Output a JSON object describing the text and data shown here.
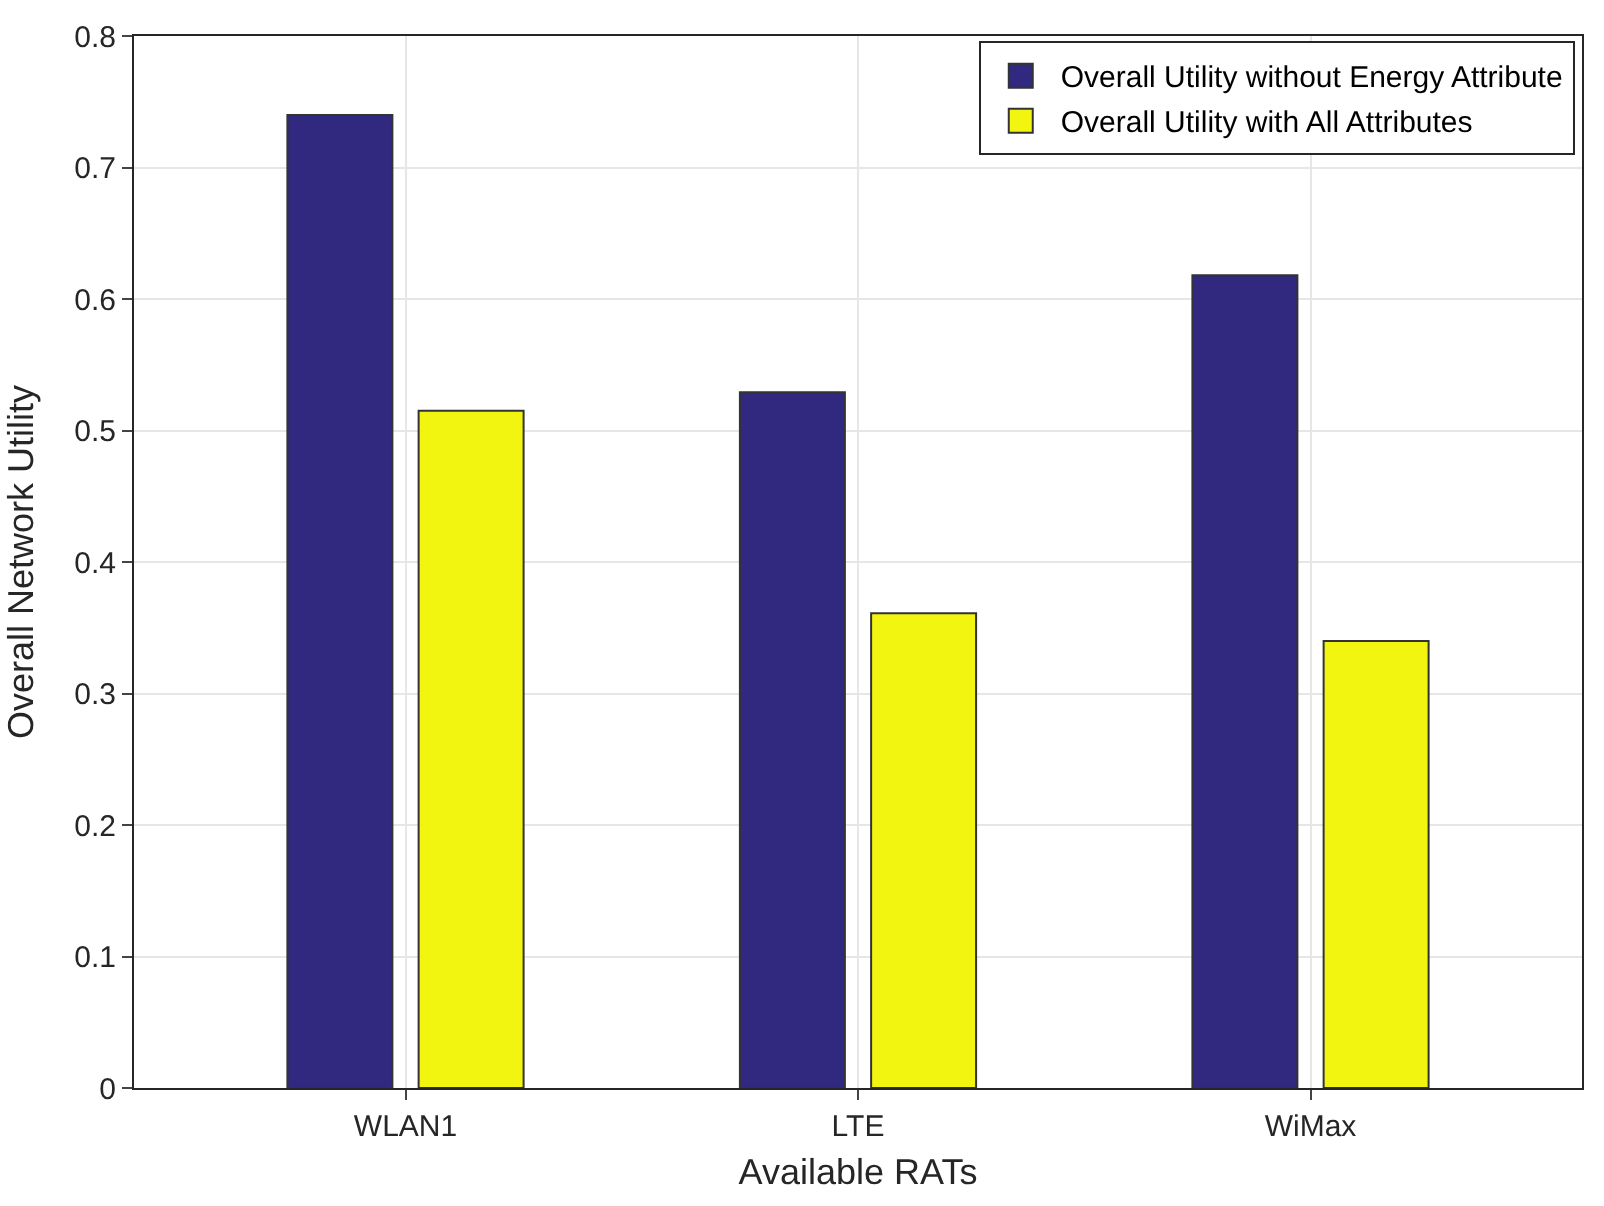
{
  "chart_data": {
    "type": "bar",
    "xlabel": "Available RATs",
    "ylabel": "Overall Network Utility",
    "categories": [
      "WLAN1",
      "LTE",
      "WiMax"
    ],
    "series": [
      {
        "name": "Overall Utility without Energy Attribute",
        "color": "#31287f",
        "values": [
          0.74,
          0.529,
          0.618
        ]
      },
      {
        "name": "Overall Utility with All Attributes",
        "color": "#f2f50f",
        "values": [
          0.515,
          0.361,
          0.34
        ]
      }
    ],
    "ylim": [
      0,
      0.8
    ],
    "yticks": [
      0,
      0.1,
      0.2,
      0.3,
      0.4,
      0.5,
      0.6,
      0.7,
      0.8
    ],
    "grid": true,
    "legend": "top right"
  }
}
